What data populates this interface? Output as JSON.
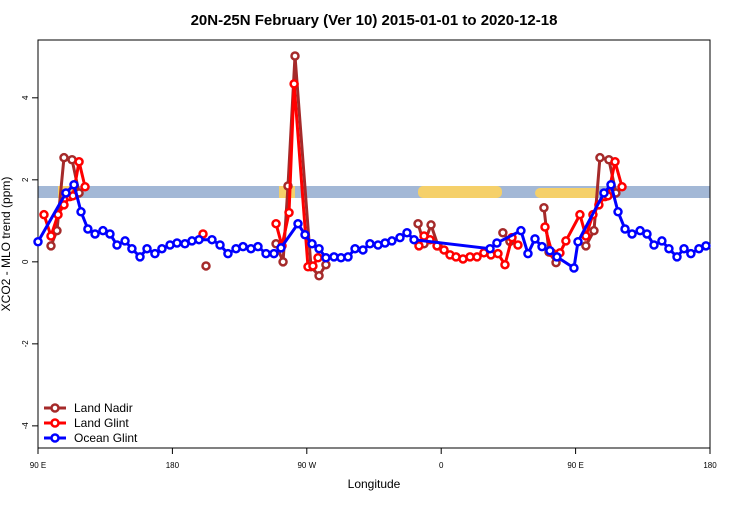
{
  "chart_data": {
    "type": "line",
    "title": "20N-25N February (Ver 10)   2015-01-01 to 2020-12-18",
    "xlabel": "Longitude",
    "ylabel": "XCO2 - MLO trend (ppm)",
    "xlim": [
      90,
      540
    ],
    "ylim": [
      -4.54,
      5.41
    ],
    "xticks": [
      {
        "value": 90,
        "label": "90 E"
      },
      180,
      {
        "value": 270,
        "label": "90 W"
      },
      {
        "value": 360,
        "label": "0"
      },
      {
        "value": 450,
        "label": "90 E"
      },
      {
        "value": 540,
        "label": "180"
      }
    ],
    "yticks": [
      -4,
      -2,
      0,
      2,
      4
    ],
    "legend": "bottomleft",
    "series": [
      {
        "name": "Land Nadir",
        "color": "#a52a2a",
        "x": [
          98.7,
          102.7,
          107.4,
          112.8,
          117.5,
          null,
          202.5,
          null,
          249.4,
          254.1,
          257.4,
          262.1,
          272.8,
          278.2,
          282.8,
          null,
          344.5,
          348.5,
          353.2,
          357.9,
          null,
          401.3,
          406,
          null,
          428.8,
          432.2,
          436.9,
          null,
          456.9,
          462.3,
          466.3,
          472.3,
          477
        ],
        "values": [
          0.39,
          0.76,
          2.54,
          2.49,
          1.68,
          null,
          -0.1,
          null,
          0.44,
          0,
          1.85,
          5.02,
          -0.12,
          -0.34,
          -0.07,
          null,
          0.93,
          0.44,
          0.9,
          0.39,
          null,
          0.71,
          0.5,
          null,
          1.32,
          0.24,
          -0.02,
          null,
          0.39,
          0.76,
          2.54,
          2.49,
          1.68
        ]
      },
      {
        "name": "Land Glint",
        "color": "#ff0000",
        "x": [
          94,
          98.7,
          103.4,
          107.4,
          111.4,
          113.4,
          117.5,
          121.5,
          null,
          200.5,
          null,
          249.4,
          253.4,
          258.1,
          261.5,
          270.8,
          274.1,
          277.5,
          null,
          345.1,
          348.5,
          352.5,
          357.2,
          361.9,
          365.9,
          369.9,
          374.6,
          379.3,
          384,
          388.6,
          393.3,
          398,
          402.7,
          407.4,
          411.4,
          null,
          429.5,
          434.2,
          439.5,
          443.5,
          452.9,
          456.9,
          461.6,
          465.6,
          469.7,
          471.7,
          476.4,
          481.1
        ],
        "values": [
          1.15,
          0.63,
          1.15,
          1.39,
          1.59,
          1.61,
          2.44,
          1.83,
          null,
          0.68,
          null,
          0.93,
          0.39,
          1.2,
          4.34,
          -0.12,
          -0.1,
          0.1,
          null,
          0.39,
          0.63,
          0.54,
          0.39,
          0.29,
          0.17,
          0.12,
          0.07,
          0.12,
          0.12,
          0.22,
          0.17,
          0.2,
          -0.07,
          0.59,
          0.41,
          null,
          0.85,
          0.22,
          0.22,
          0.51,
          1.15,
          0.63,
          1.15,
          1.39,
          1.59,
          1.61,
          2.44,
          1.83
        ]
      },
      {
        "name": "Ocean Glint",
        "color": "#0000ff",
        "x": [
          90,
          108.7,
          114.1,
          118.8,
          123.4,
          128.2,
          133.5,
          138.2,
          142.9,
          148.3,
          152.9,
          158.3,
          163,
          168.3,
          173,
          178.4,
          183.1,
          188.4,
          193.1,
          197.8,
          206.5,
          211.9,
          217.2,
          222.6,
          227.3,
          232.6,
          237.3,
          242.7,
          248,
          252.7,
          264.1,
          268.8,
          273.5,
          278.2,
          282.8,
          288.2,
          292.9,
          297.6,
          302.3,
          307.6,
          312.3,
          317.7,
          322.4,
          327,
          332.4,
          337.1,
          341.8,
          392.7,
          397.3,
          413.4,
          418.1,
          422.8,
          427.5,
          432.8,
          437.5,
          448.9,
          451.6,
          469,
          473.7,
          478.4,
          483.1,
          487.8,
          493.2,
          497.8,
          502.5,
          507.8,
          512.5,
          517.9,
          522.6,
          527.2,
          532.6,
          537.3
        ],
        "values": [
          0.49,
          1.68,
          1.88,
          1.22,
          0.8,
          0.68,
          0.76,
          0.68,
          0.41,
          0.51,
          0.32,
          0.12,
          0.32,
          0.2,
          0.32,
          0.41,
          0.46,
          0.44,
          0.51,
          0.54,
          0.54,
          0.41,
          0.2,
          0.32,
          0.37,
          0.32,
          0.37,
          0.2,
          0.2,
          0.34,
          0.93,
          0.66,
          0.44,
          0.32,
          0.1,
          0.12,
          0.1,
          0.12,
          0.32,
          0.29,
          0.44,
          0.41,
          0.46,
          0.51,
          0.59,
          0.71,
          0.54,
          0.32,
          0.46,
          0.76,
          0.2,
          0.56,
          0.37,
          0.27,
          0.12,
          -0.15,
          0.49,
          1.68,
          1.88,
          1.22,
          0.8,
          0.68,
          0.76,
          0.68,
          0.41,
          0.51,
          0.32,
          0.12,
          0.32,
          0.2,
          0.32,
          0.39
        ]
      }
    ]
  }
}
